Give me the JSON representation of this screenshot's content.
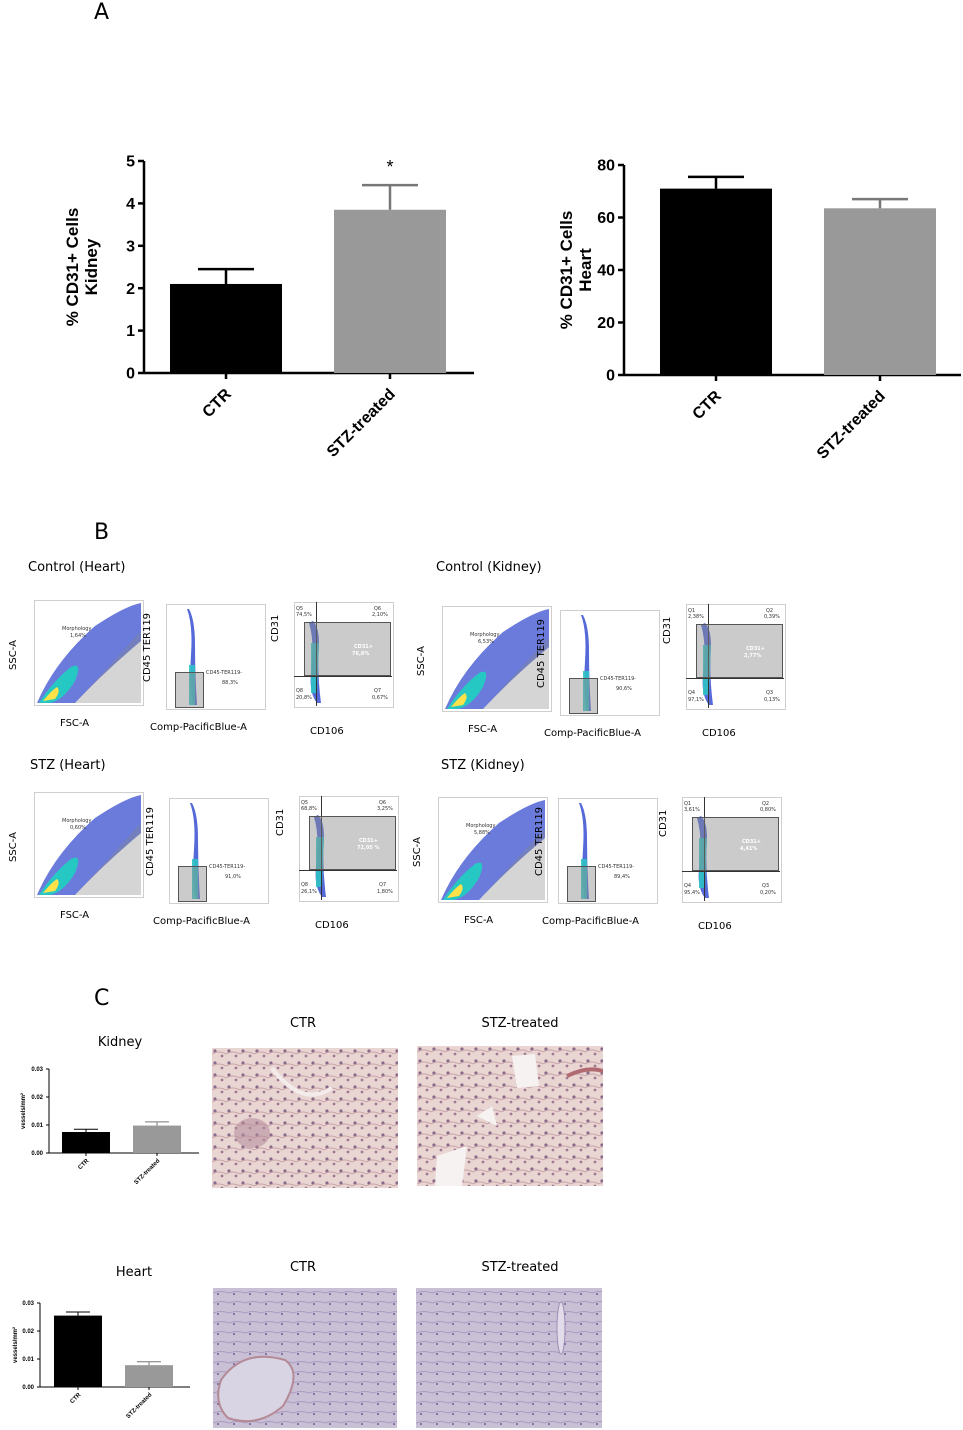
{
  "panels": {
    "a_label": "A",
    "b_label": "B",
    "c_label": "C"
  },
  "chart_data": [
    {
      "id": "kidney-cd31",
      "type": "bar",
      "categories": [
        "CTR",
        "STZ-treated"
      ],
      "values": [
        2.1,
        3.85
      ],
      "errors": [
        0.35,
        0.58
      ],
      "colors": [
        "#000000",
        "#999999"
      ],
      "ylabel": "% CD31+ Cells\nKidney",
      "ylabel_lines": [
        "% CD31+ Cells",
        "Kidney"
      ],
      "ylim": [
        0,
        5
      ],
      "yticks": [
        "0",
        "1",
        "2",
        "3",
        "4",
        "5"
      ],
      "annotation": "*"
    },
    {
      "id": "heart-cd31",
      "type": "bar",
      "categories": [
        "CTR",
        "STZ-treated"
      ],
      "values": [
        71,
        63.5
      ],
      "errors": [
        4.5,
        3.5
      ],
      "colors": [
        "#000000",
        "#999999"
      ],
      "ylabel_lines": [
        "% CD31+ Cells",
        "Heart"
      ],
      "ylim": [
        0,
        80
      ],
      "yticks": [
        "0",
        "20",
        "40",
        "60",
        "80"
      ]
    },
    {
      "id": "kidney-vessels",
      "type": "bar",
      "title": "Kidney",
      "categories": [
        "CTR",
        "STZ-treated"
      ],
      "values": [
        0.0075,
        0.0098
      ],
      "errors": [
        0.001,
        0.0013
      ],
      "colors": [
        "#000000",
        "#999999"
      ],
      "ylabel": "vessels/mm²",
      "ylim": [
        0,
        0.03
      ],
      "yticks": [
        "0.00",
        "0.01",
        "0.02",
        "0.03"
      ]
    },
    {
      "id": "heart-vessels",
      "type": "bar",
      "title": "Heart",
      "categories": [
        "CTR",
        "STZ-treated"
      ],
      "values": [
        0.0255,
        0.0078
      ],
      "errors": [
        0.0013,
        0.0012
      ],
      "colors": [
        "#000000",
        "#999999"
      ],
      "ylabel": "vessels/mm²",
      "ylim": [
        0,
        0.03
      ],
      "yticks": [
        "0.00",
        "0.01",
        "0.02",
        "0.03"
      ]
    }
  ],
  "flow": {
    "groups": [
      {
        "title": "Control (Heart)",
        "scatter": {
          "ylabel": "SSC-A",
          "xlabel": "FSC-A",
          "gate_label": "Morphology",
          "gate_value": "1,64%"
        },
        "lineage": {
          "ylabel": "CD45 TER119",
          "xlabel": "Comp-PacificBlue-A",
          "gate_label": "CD45-TER119-",
          "gate_value": "88,3%"
        },
        "cd31": {
          "ylabel": "CD31",
          "xlabel": "CD106",
          "q5": "Q5",
          "q5v": "74,5%",
          "q6": "Q6",
          "q6v": "2,10%",
          "q8": "Q8",
          "q8v": "20,8%",
          "q7": "Q7",
          "q7v": "0,67%",
          "gate_label": "CD31+",
          "gate_value": "76,6%"
        }
      },
      {
        "title": "Control (Kidney)",
        "scatter": {
          "ylabel": "SSC-A",
          "xlabel": "FSC-A",
          "gate_label": "Morphology",
          "gate_value": "6,53%"
        },
        "lineage": {
          "ylabel": "CD45 TER119",
          "xlabel": "Comp-PacificBlue-A",
          "gate_label": "CD45-TER119-",
          "gate_value": "90,6%"
        },
        "cd31": {
          "ylabel": "CD31",
          "xlabel": "CD106",
          "q5": "Q1",
          "q5v": "2,38%",
          "q6": "Q2",
          "q6v": "0,39%",
          "q8": "Q4",
          "q8v": "97,1%",
          "q7": "Q3",
          "q7v": "0,13%",
          "gate_label": "CD31+",
          "gate_value": "2,77%"
        }
      },
      {
        "title": "STZ (Heart)",
        "scatter": {
          "ylabel": "SSC-A",
          "xlabel": "FSC-A",
          "gate_label": "Morphology",
          "gate_value": "0,60%"
        },
        "lineage": {
          "ylabel": "CD45 TER119",
          "xlabel": "Comp-PacificBlue-A",
          "gate_label": "CD45-TER119-",
          "gate_value": "91,0%"
        },
        "cd31": {
          "ylabel": "CD31",
          "xlabel": "CD106",
          "q5": "Q5",
          "q5v": "68,8%",
          "q6": "Q6",
          "q6v": "3,25%",
          "q8": "Q8",
          "q8v": "26,1%",
          "q7": "Q7",
          "q7v": "1,80%",
          "gate_label": "CD31+",
          "gate_value": "72,05 %"
        }
      },
      {
        "title": "STZ (Kidney)",
        "scatter": {
          "ylabel": "SSC-A",
          "xlabel": "FSC-A",
          "gate_label": "Morphology",
          "gate_value": "5,88%"
        },
        "lineage": {
          "ylabel": "CD45 TER119",
          "xlabel": "Comp-PacificBlue-A",
          "gate_label": "CD45-TER119-",
          "gate_value": "89,4%"
        },
        "cd31": {
          "ylabel": "CD31",
          "xlabel": "CD106",
          "q5": "Q1",
          "q5v": "3,61%",
          "q6": "Q2",
          "q6v": "0,80%",
          "q8": "Q4",
          "q8v": "95,4%",
          "q7": "Q3",
          "q7v": "0,20%",
          "gate_label": "CD31+",
          "gate_value": "4,41%"
        }
      }
    ]
  },
  "histology": {
    "kidney_ctr": "CTR",
    "kidney_stz": "STZ-treated",
    "heart_ctr": "CTR",
    "heart_stz": "STZ-treated"
  }
}
